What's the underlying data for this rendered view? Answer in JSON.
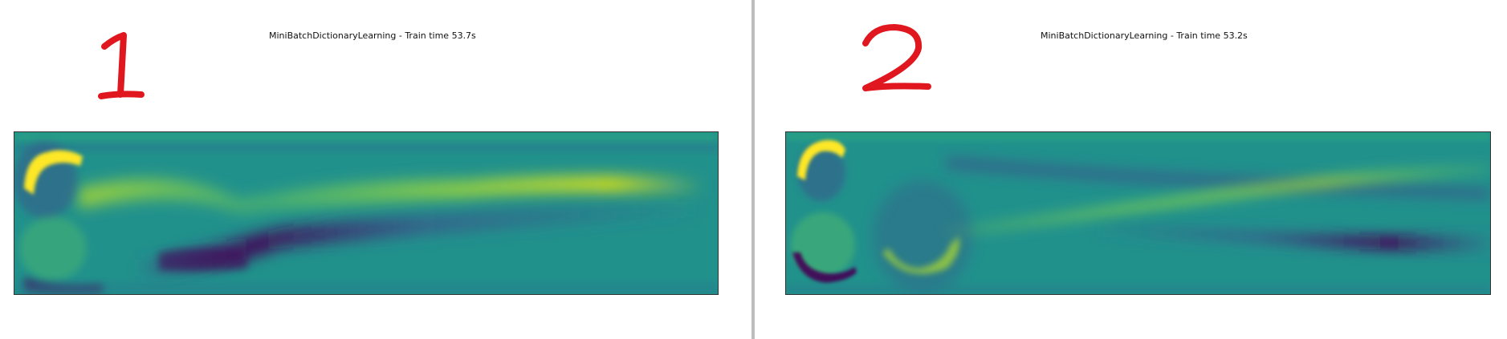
{
  "panels": [
    {
      "number_label": "1",
      "title": "MiniBatchDictionaryLearning - Train time 53.7s",
      "annotation_color": "#e0171e",
      "colormap": "viridis"
    },
    {
      "number_label": "2",
      "title": "MiniBatchDictionaryLearning - Train time 53.2s",
      "annotation_color": "#e0171e",
      "colormap": "viridis"
    }
  ],
  "colors": {
    "viridis_mid": "#21918c",
    "viridis_yellow": "#dde318",
    "viridis_purple": "#440154",
    "viridis_dark_blue": "#3b528b"
  }
}
